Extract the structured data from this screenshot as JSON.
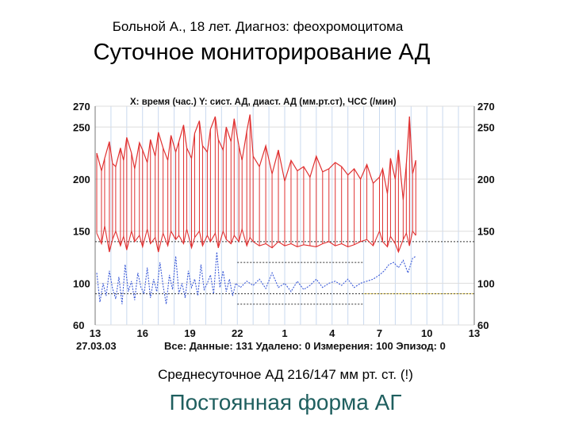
{
  "slide": {
    "caption": "Больной А., 18 лет. Диагноз: феохромоцитома",
    "title": "Суточное мониторирование АД",
    "footer_note": "Среднесуточное АД 216/147 мм рт. ст. (!)",
    "conclusion": "Постоянная форма АГ"
  },
  "colors": {
    "systolic": "#e03030",
    "diastolic": "#e03030",
    "heart_rate": "#3a5ad8",
    "grid_vertical": "#c9d9ef",
    "grid_horizontal": "#dddddd",
    "threshold": "#333333",
    "threshold_day_hr": "#e6c83a"
  },
  "chart_data": {
    "type": "line",
    "header": "X: время (час.)  Y: сист. АД, диаст. АД (мм.рт.ст), ЧСС (/мин)",
    "x_tick_labels": [
      "13",
      "16",
      "19",
      "22",
      "1",
      "4",
      "7",
      "10",
      "13"
    ],
    "y_tick_labels": [
      "270",
      "250",
      "200",
      "150",
      "100",
      "60"
    ],
    "ylim": [
      60,
      270
    ],
    "grid": true,
    "date_label": "27.03.03",
    "stats": "Все: Данные: 131 Удалено: 0 Измерения: 100 Эпизод: 0",
    "thresholds": [
      {
        "value": 140,
        "x_from": 0,
        "x_to": 24
      },
      {
        "value": 90,
        "x_from": 0,
        "x_to": 24
      },
      {
        "value": 120,
        "x_from": 9,
        "x_to": 17
      },
      {
        "value": 80,
        "x_from": 9,
        "x_to": 17
      },
      {
        "value": 90,
        "x_from": 17,
        "x_to": 24
      }
    ],
    "series": [
      {
        "key": "systolic",
        "x": [
          0.1,
          0.4,
          0.6,
          0.9,
          1.1,
          1.3,
          1.6,
          1.8,
          2.0,
          2.3,
          2.5,
          2.8,
          3.0,
          3.3,
          3.5,
          3.8,
          4.0,
          4.3,
          4.6,
          4.8,
          5.1,
          5.3,
          5.6,
          5.8,
          6.1,
          6.3,
          6.6,
          6.8,
          7.1,
          7.3,
          7.6,
          7.8,
          8.1,
          8.3,
          8.6,
          8.8,
          9.1,
          9.3,
          9.6,
          9.8,
          10.0,
          10.4,
          10.8,
          11.2,
          11.6,
          12.0,
          12.4,
          12.8,
          13.2,
          13.6,
          14.0,
          14.4,
          14.8,
          15.2,
          15.6,
          16.0,
          16.4,
          16.8,
          17.2,
          17.6,
          18.0,
          18.2,
          18.5,
          18.7,
          19.0,
          19.2,
          19.5,
          19.7,
          19.9,
          20.1,
          20.3
        ],
        "values": [
          225,
          208,
          220,
          236,
          215,
          212,
          230,
          218,
          240,
          225,
          210,
          235,
          228,
          216,
          238,
          222,
          245,
          230,
          218,
          242,
          226,
          236,
          252,
          230,
          220,
          244,
          256,
          232,
          226,
          248,
          260,
          238,
          228,
          250,
          236,
          258,
          232,
          218,
          246,
          262,
          222,
          212,
          232,
          205,
          228,
          198,
          218,
          208,
          212,
          202,
          222,
          207,
          210,
          216,
          212,
          204,
          210,
          200,
          214,
          196,
          202,
          210,
          186,
          220,
          200,
          228,
          180,
          215,
          260,
          205,
          218
        ]
      },
      {
        "key": "diastolic",
        "x": [
          0.1,
          0.4,
          0.6,
          0.9,
          1.1,
          1.3,
          1.6,
          1.8,
          2.0,
          2.3,
          2.5,
          2.8,
          3.0,
          3.3,
          3.5,
          3.8,
          4.0,
          4.3,
          4.6,
          4.8,
          5.1,
          5.3,
          5.6,
          5.8,
          6.1,
          6.3,
          6.6,
          6.8,
          7.1,
          7.3,
          7.6,
          7.8,
          8.1,
          8.3,
          8.6,
          8.8,
          9.1,
          9.3,
          9.6,
          9.8,
          10.0,
          10.4,
          10.8,
          11.2,
          11.6,
          12.0,
          12.4,
          12.8,
          13.2,
          13.6,
          14.0,
          14.4,
          14.8,
          15.2,
          15.6,
          16.0,
          16.4,
          16.8,
          17.2,
          17.6,
          18.0,
          18.2,
          18.5,
          18.7,
          19.0,
          19.2,
          19.5,
          19.7,
          19.9,
          20.1,
          20.3
        ],
        "values": [
          148,
          138,
          155,
          130,
          142,
          150,
          136,
          145,
          132,
          150,
          140,
          146,
          135,
          152,
          138,
          144,
          130,
          148,
          136,
          150,
          142,
          146,
          138,
          152,
          134,
          144,
          150,
          136,
          146,
          140,
          148,
          134,
          150,
          142,
          138,
          146,
          140,
          152,
          136,
          144,
          140,
          136,
          138,
          134,
          140,
          136,
          138,
          135,
          137,
          136,
          135,
          138,
          140,
          136,
          138,
          135,
          137,
          140,
          142,
          136,
          150,
          140,
          135,
          145,
          138,
          130,
          142,
          148,
          136,
          150,
          146
        ]
      },
      {
        "key": "heart_rate",
        "x": [
          0.1,
          0.3,
          0.5,
          0.7,
          0.9,
          1.1,
          1.3,
          1.5,
          1.7,
          1.9,
          2.1,
          2.3,
          2.5,
          2.7,
          2.9,
          3.1,
          3.3,
          3.5,
          3.7,
          3.9,
          4.1,
          4.3,
          4.5,
          4.7,
          4.9,
          5.1,
          5.3,
          5.5,
          5.7,
          5.9,
          6.1,
          6.3,
          6.5,
          6.7,
          6.9,
          7.1,
          7.3,
          7.5,
          7.7,
          7.9,
          8.1,
          8.3,
          8.5,
          8.7,
          8.9,
          9.2,
          9.6,
          10.0,
          10.4,
          10.8,
          11.2,
          11.6,
          12.0,
          12.4,
          12.8,
          13.2,
          13.6,
          14.0,
          14.4,
          14.8,
          15.2,
          15.6,
          16.0,
          16.4,
          16.8,
          17.2,
          17.6,
          18.0,
          18.3,
          18.6,
          18.9,
          19.2,
          19.5,
          19.8,
          20.1,
          20.3
        ],
        "values": [
          110,
          82,
          100,
          88,
          112,
          95,
          85,
          106,
          80,
          118,
          92,
          102,
          84,
          110,
          96,
          90,
          115,
          86,
          104,
          92,
          120,
          98,
          80,
          108,
          94,
          126,
          90,
          100,
          86,
          112,
          96,
          104,
          88,
          118,
          94,
          100,
          108,
          90,
          130,
          96,
          112,
          92,
          104,
          88,
          100,
          96,
          102,
          98,
          104,
          95,
          110,
          96,
          100,
          92,
          102,
          94,
          98,
          104,
          96,
          100,
          102,
          98,
          104,
          96,
          100,
          102,
          104,
          108,
          112,
          118,
          120,
          115,
          122,
          110,
          124,
          126
        ]
      }
    ]
  }
}
